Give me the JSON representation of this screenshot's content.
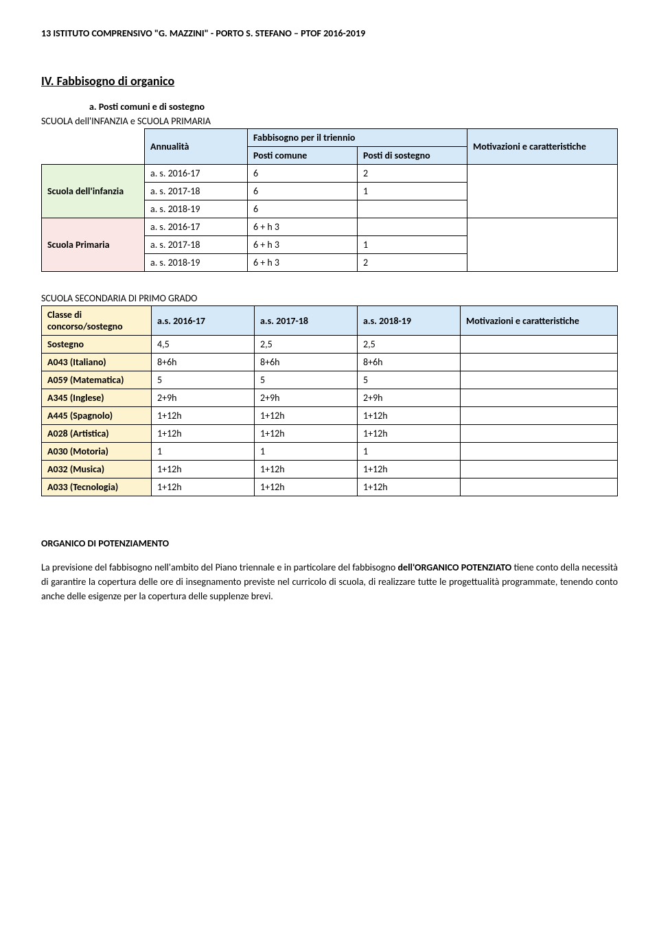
{
  "header": "13 ISTITUTO COMPRENSIVO \"G. MAZZINI\"  - PORTO S. STEFANO – PTOF 2016-2019",
  "section_title": "IV. Fabbisogno di organico",
  "sub_a_prefix": "a.",
  "sub_a": "Posti comuni e di sostegno",
  "label_t1": "SCUOLA dell'INFANZIA e SCUOLA PRIMARIA",
  "t1": {
    "h_annualita": "Annualità",
    "h_fabbisogno": "Fabbisogno per il triennio",
    "h_posti_comune": "Posti comune",
    "h_posti_sostegno": "Posti di sostegno",
    "h_motivazioni": "Motivazioni e caratteristiche",
    "row_infanzia": "Scuola dell'infanzia",
    "row_primaria": "Scuola Primaria",
    "r": [
      [
        "a. s. 2016-17",
        "6",
        "2"
      ],
      [
        "a. s. 2017-18",
        "6",
        "1"
      ],
      [
        "a. s. 2018-19",
        "6",
        ""
      ],
      [
        "a. s. 2016-17",
        "6 + h 3",
        ""
      ],
      [
        "a. s. 2017-18",
        "6 + h 3",
        "1"
      ],
      [
        "a. s. 2018-19",
        "6 + h 3",
        "2"
      ]
    ]
  },
  "label_t2": "SCUOLA SECONDARIA DI PRIMO GRADO",
  "t2": {
    "h_classe": "Classe di concorso/sostegno",
    "h_y1": "a.s. 2016-17",
    "h_y2": "a.s. 2017-18",
    "h_y3": "a.s. 2018-19",
    "h_mot": "Motivazioni e caratteristiche",
    "rows": [
      [
        "Sostegno",
        "4,5",
        "2,5",
        "2,5"
      ],
      [
        "A043 (Italiano)",
        "8+6h",
        "8+6h",
        "8+6h"
      ],
      [
        "A059 (Matematica)",
        "5",
        "5",
        "5"
      ],
      [
        "A345 (Inglese)",
        "2+9h",
        "2+9h",
        "2+9h"
      ],
      [
        "A445 (Spagnolo)",
        "1+12h",
        "1+12h",
        "1+12h"
      ],
      [
        "A028 (Artistica)",
        "1+12h",
        "1+12h",
        "1+12h"
      ],
      [
        "A030 (Motoria)",
        "1",
        "1",
        "1"
      ],
      [
        "A032 (Musica)",
        "1+12h",
        "1+12h",
        "1+12h"
      ],
      [
        "A033 (Tecnologia)",
        "1+12h",
        "1+12h",
        "1+12h"
      ]
    ]
  },
  "pot_title": "ORGANICO DI POTENZIAMENTO",
  "para_parts": {
    "p1a": "La previsione del fabbisogno nell'ambito del Piano triennale e in particolare del fabbisogno ",
    "p1b": "dell'ORGANICO POTENZIATO",
    "p1c": "  tiene conto della necessità di garantire la copertura delle ore di insegnamento previste nel curricolo di scuola, di realizzare tutte le progettualità programmate, tenendo conto anche delle esigenze per la copertura delle supplenze brevi."
  }
}
